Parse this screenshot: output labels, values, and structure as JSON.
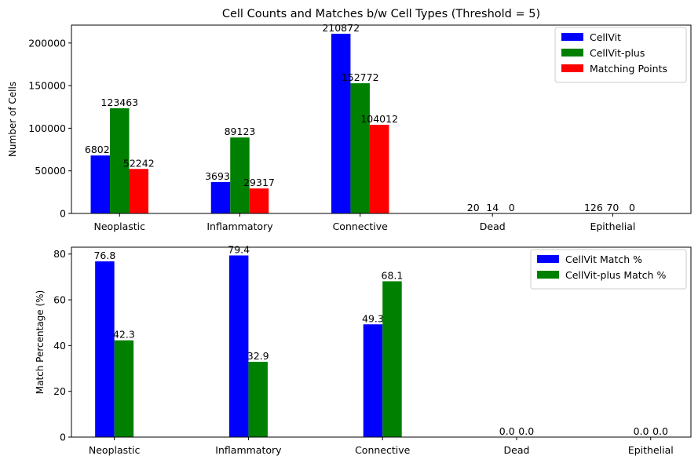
{
  "chart_data": [
    {
      "type": "bar",
      "title": "Cell Counts and Matches b/w Cell Types (Threshold = 5)",
      "xlabel": "",
      "ylabel": "Number of Cells",
      "categories": [
        "Neoplastic",
        "Inflammatory",
        "Connective",
        "Dead",
        "Epithelial"
      ],
      "category_x": [
        0,
        1,
        2,
        3.1,
        4.1
      ],
      "xlim": [
        -0.4,
        4.75
      ],
      "ylim": [
        0,
        221000
      ],
      "yticks": [
        0,
        50000,
        100000,
        150000,
        200000
      ],
      "legend_position": "upper right",
      "series": [
        {
          "name": "CellVit",
          "color": "#0000ff",
          "values": [
            68028,
            36930,
            210872,
            20,
            126
          ]
        },
        {
          "name": "CellVit-plus",
          "color": "#008000",
          "values": [
            123463,
            89123,
            152772,
            14,
            70
          ]
        },
        {
          "name": "Matching Points",
          "color": "#ff0000",
          "values": [
            52242,
            29317,
            104012,
            0,
            0
          ]
        }
      ]
    },
    {
      "type": "bar",
      "title": "",
      "xlabel": "",
      "ylabel": "Match Percentage (%)",
      "categories": [
        "Neoplastic",
        "Inflammatory",
        "Connective",
        "Dead",
        "Epithelial"
      ],
      "category_x": [
        0,
        1,
        2,
        3.0,
        4.0
      ],
      "xlim": [
        -0.32,
        4.3
      ],
      "ylim": [
        0,
        83
      ],
      "yticks": [
        0,
        20,
        40,
        60,
        80
      ],
      "legend_position": "upper right",
      "series": [
        {
          "name": "CellVit Match %",
          "color": "#0000ff",
          "values": [
            76.8,
            79.4,
            49.3,
            0.0,
            0.0
          ],
          "labels": [
            "76.8",
            "79.4",
            "49.3",
            "0.0",
            "0.0"
          ]
        },
        {
          "name": "CellVit-plus Match %",
          "color": "#008000",
          "values": [
            42.3,
            32.9,
            68.1,
            0.0,
            0.0
          ],
          "labels": [
            "42.3",
            "32.9",
            "68.1",
            "0.0",
            "0.0"
          ]
        }
      ]
    }
  ]
}
